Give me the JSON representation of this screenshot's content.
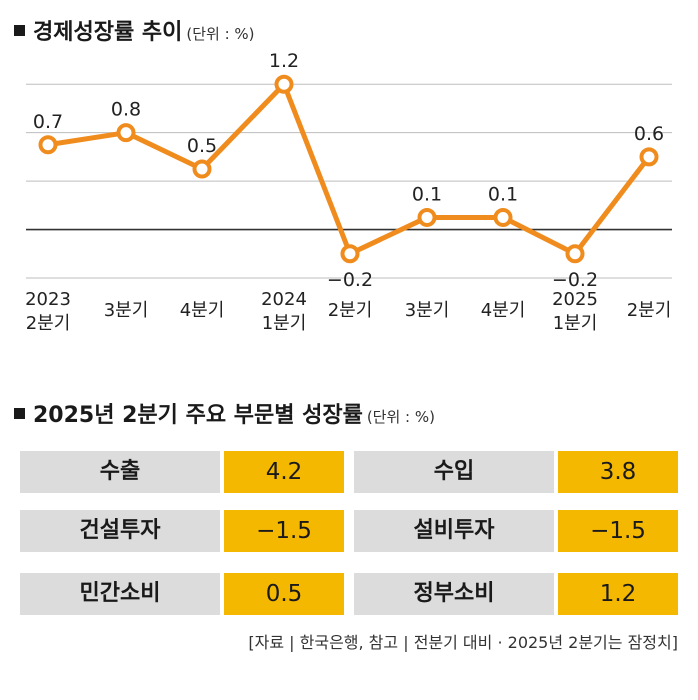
{
  "chart_section": {
    "title": "경제성장률 추이",
    "unit": "(단위 : %)"
  },
  "chart_data": {
    "type": "line",
    "title": "경제성장률 추이",
    "unit": "(단위 : %)",
    "categories": [
      [
        "2023",
        "2분기"
      ],
      [
        "3분기"
      ],
      [
        "4분기"
      ],
      [
        "2024",
        "1분기"
      ],
      [
        "2분기"
      ],
      [
        "3분기"
      ],
      [
        "4분기"
      ],
      [
        "2025",
        "1분기"
      ],
      [
        "2분기"
      ]
    ],
    "values": [
      0.7,
      0.8,
      0.5,
      1.2,
      -0.2,
      0.1,
      0.1,
      -0.2,
      0.6
    ],
    "value_labels": [
      "0.7",
      "0.8",
      "0.5",
      "1.2",
      "−0.2",
      "0.1",
      "0.1",
      "−0.2",
      "0.6"
    ],
    "ylim": [
      -0.4,
      1.4
    ],
    "grid": true,
    "line_color": "#f08c1e",
    "marker_fill": "#ffffff"
  },
  "table_section": {
    "title": "2025년 2분기 주요 부문별 성장률",
    "unit": "(단위 : %)",
    "rows": [
      [
        {
          "name": "수출",
          "value": "4.2"
        },
        {
          "name": "수입",
          "value": "3.8"
        }
      ],
      [
        {
          "name": "건설투자",
          "value": "−1.5"
        },
        {
          "name": "설비투자",
          "value": "−1.5"
        }
      ],
      [
        {
          "name": "민간소비",
          "value": "0.5"
        },
        {
          "name": "정부소비",
          "value": "1.2"
        }
      ]
    ],
    "name_bg": "#dcdcdc",
    "value_bg": "#f5b800"
  },
  "source": "[자료 | 한국은행, 참고 | 전분기 대비 · 2025년 2분기는 잠정치]"
}
